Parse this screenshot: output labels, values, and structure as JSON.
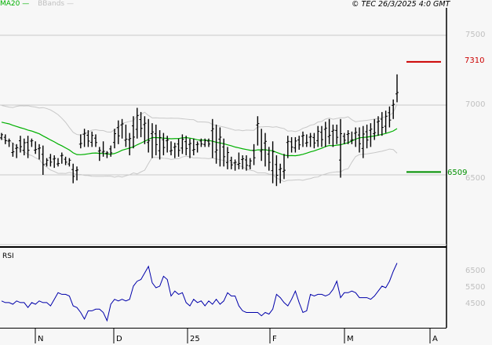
{
  "header": {
    "legend_ma": "MA20",
    "legend_bb": "BBands",
    "copyright": "© TEC 26/3/2025 4:0 GMT"
  },
  "colors": {
    "price_bars": "#000000",
    "ma20": "#00b000",
    "bbands": "#c8c8c8",
    "target_high": "#cc0000",
    "target_low": "#009000",
    "rsi": "#0000aa",
    "grid": "#c8c8c8"
  },
  "annotations": {
    "target_high": "7310",
    "target_low": "6509"
  },
  "rsi_panel": {
    "label": "RSI"
  },
  "chart_data": [
    {
      "type": "ohlc",
      "title": "Price with MA20 and Bollinger Bands",
      "ylabel": "",
      "ylim": [
        5970,
        7700
      ],
      "yticks": [
        "7500",
        "7000",
        "6500"
      ],
      "xticks": [
        "N",
        "D",
        "25",
        "F",
        "M",
        "A"
      ],
      "grid": true,
      "legend": [
        "MA20",
        "BBands"
      ],
      "annotations": [
        {
          "label": "7310",
          "value": 7310,
          "color": "#cc0000"
        },
        {
          "label": "6509",
          "value": 6509,
          "color": "#009000"
        }
      ],
      "bars_high": [
        6800,
        6790,
        6760,
        6730,
        6720,
        6780,
        6760,
        6780,
        6760,
        6740,
        6720,
        6710,
        6620,
        6650,
        6640,
        6620,
        6660,
        6630,
        6620,
        6580,
        6560,
        6790,
        6830,
        6820,
        6810,
        6790,
        6700,
        6740,
        6670,
        6710,
        6830,
        6890,
        6900,
        6860,
        6800,
        6920,
        6980,
        6950,
        6920,
        6900,
        6870,
        6860,
        6820,
        6800,
        6780,
        6740,
        6730,
        6760,
        6790,
        6780,
        6760,
        6760,
        6740,
        6760,
        6760,
        6760,
        6900,
        6860,
        6840,
        6760,
        6700,
        6630,
        6610,
        6660,
        6640,
        6640,
        6620,
        6720,
        6920,
        6830,
        6800,
        6700,
        6740,
        6640,
        6580,
        6650,
        6780,
        6770,
        6770,
        6780,
        6810,
        6790,
        6800,
        6800,
        6850,
        6850,
        6880,
        6900,
        6860,
        6860,
        6900,
        6800,
        6820,
        6810,
        6840,
        6840,
        6850,
        6860,
        6870,
        6900,
        6920,
        6950,
        6960,
        6990,
        7040,
        7220
      ],
      "bars_low": [
        6750,
        6720,
        6700,
        6630,
        6620,
        6660,
        6640,
        6620,
        6700,
        6650,
        6610,
        6500,
        6560,
        6560,
        6550,
        6560,
        6580,
        6570,
        6560,
        6440,
        6460,
        6690,
        6700,
        6700,
        6700,
        6700,
        6600,
        6630,
        6620,
        6630,
        6690,
        6720,
        6760,
        6700,
        6640,
        6690,
        6760,
        6770,
        6720,
        6660,
        6620,
        6640,
        6610,
        6640,
        6660,
        6640,
        6620,
        6630,
        6650,
        6640,
        6620,
        6640,
        6660,
        6700,
        6700,
        6700,
        6620,
        6580,
        6560,
        6560,
        6540,
        6540,
        6530,
        6540,
        6540,
        6530,
        6540,
        6570,
        6710,
        6600,
        6560,
        6530,
        6440,
        6420,
        6440,
        6470,
        6620,
        6660,
        6660,
        6680,
        6700,
        6700,
        6700,
        6690,
        6700,
        6700,
        6700,
        6720,
        6700,
        6720,
        6480,
        6720,
        6720,
        6720,
        6700,
        6660,
        6620,
        6690,
        6700,
        6750,
        6780,
        6780,
        6800,
        6840,
        6900,
        7020
      ]
    },
    {
      "type": "line",
      "title": "RSI",
      "yticks": [
        "6500",
        "5500",
        "4500"
      ],
      "ylim": [
        38,
        72
      ],
      "values": [
        47,
        46,
        46,
        45,
        47,
        46,
        46,
        43,
        46,
        45,
        47,
        46,
        46,
        44,
        48,
        52,
        51,
        51,
        50,
        44,
        43,
        40,
        36,
        41,
        41,
        42,
        42,
        40,
        35,
        45,
        48,
        47,
        48,
        47,
        48,
        56,
        59,
        60,
        64,
        68,
        58,
        55,
        56,
        62,
        60,
        50,
        53,
        51,
        52,
        46,
        44,
        48,
        46,
        47,
        44,
        47,
        45,
        48,
        45,
        47,
        52,
        50,
        50,
        44,
        41,
        40,
        40,
        40,
        40,
        38,
        40,
        39,
        42,
        51,
        49,
        46,
        44,
        48,
        53,
        46,
        40,
        41,
        51,
        50,
        51,
        51,
        50,
        51,
        54,
        59,
        49,
        52,
        52,
        53,
        52,
        49,
        49,
        49,
        48,
        50,
        53,
        56,
        55,
        59,
        65,
        70
      ]
    }
  ]
}
